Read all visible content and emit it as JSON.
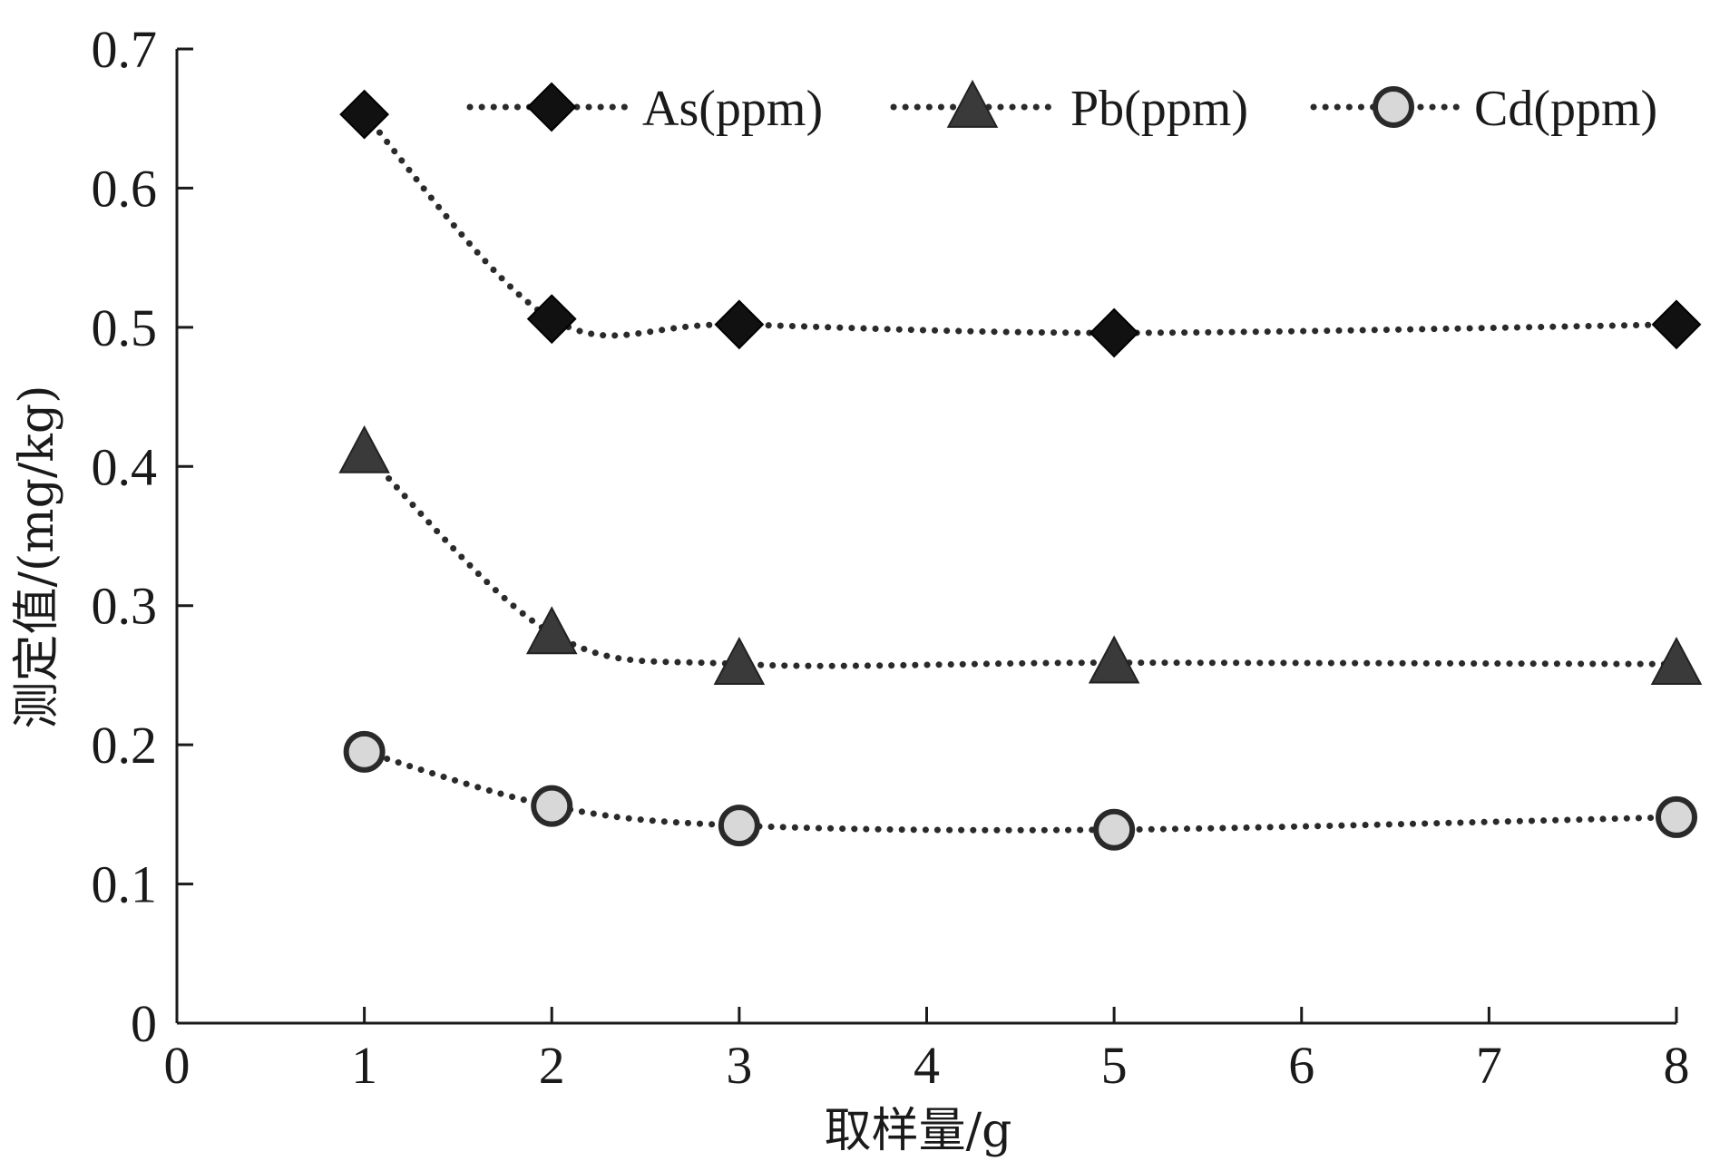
{
  "chart_data": {
    "type": "line",
    "xlabel": "取样量/g",
    "ylabel": "测定值/(mg/kg)",
    "xlim": [
      0,
      8
    ],
    "ylim": [
      0,
      0.7
    ],
    "x_ticks": [
      "0",
      "1",
      "2",
      "3",
      "4",
      "5",
      "6",
      "7",
      "8"
    ],
    "y_ticks": [
      "0",
      "0.1",
      "0.2",
      "0.3",
      "0.4",
      "0.5",
      "0.6",
      "0.7"
    ],
    "grid": false,
    "legend_position": "top",
    "line_style": "dotted",
    "x": [
      1,
      2,
      3,
      5,
      8
    ],
    "series": [
      {
        "name": "As(ppm)",
        "marker": "diamond",
        "color": "#111111",
        "values": [
          0.653,
          0.506,
          0.502,
          0.496,
          0.502
        ]
      },
      {
        "name": "Pb(ppm)",
        "marker": "triangle",
        "color": "#3a3a3a",
        "values": [
          0.41,
          0.28,
          0.258,
          0.259,
          0.258
        ]
      },
      {
        "name": "Cd(ppm)",
        "marker": "circle",
        "color": "#d8d8d8",
        "values": [
          0.195,
          0.156,
          0.142,
          0.139,
          0.148
        ]
      }
    ]
  }
}
